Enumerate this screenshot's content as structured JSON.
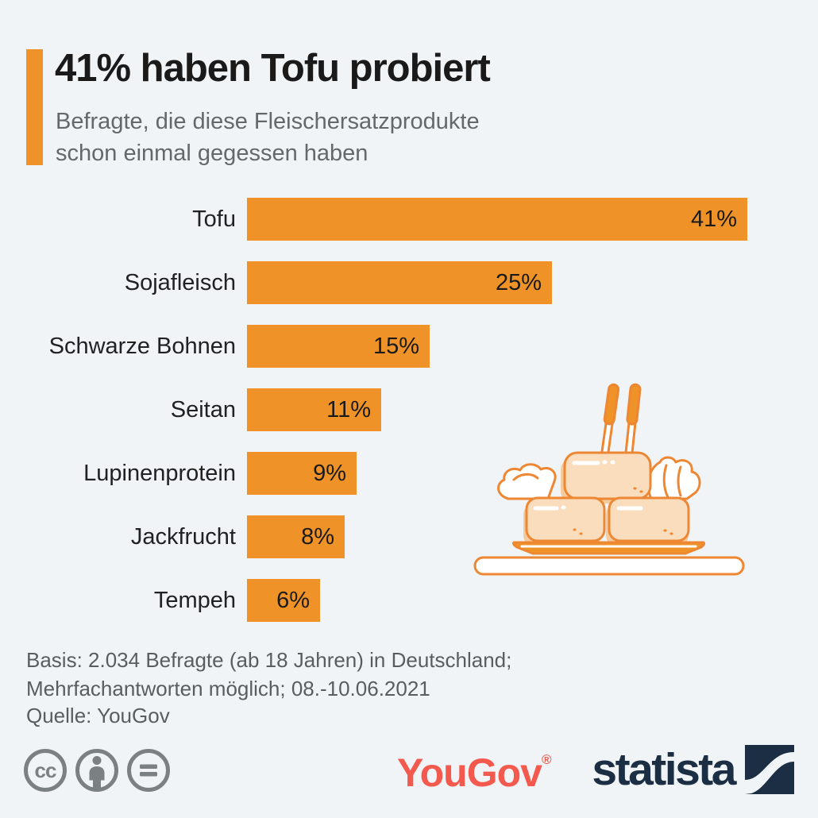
{
  "page": {
    "background_color": "#F0F4F7"
  },
  "header": {
    "title": "41% haben Tofu probiert",
    "subtitle_line1": "Befragte, die diese Fleischersatzprodukte",
    "subtitle_line2": "schon einmal gegessen haben",
    "accent_color": "#EF9329"
  },
  "chart_data": {
    "type": "bar",
    "orientation": "horizontal",
    "title": "41% haben Tofu probiert",
    "subtitle": "Befragte, die diese Fleischersatzprodukte schon einmal gegessen haben",
    "categories": [
      "Tofu",
      "Sojafleisch",
      "Schwarze Bohnen",
      "Seitan",
      "Lupinenprotein",
      "Jackfrucht",
      "Tempeh"
    ],
    "values": [
      41,
      25,
      15,
      11,
      9,
      8,
      6
    ],
    "value_labels": [
      "41%",
      "25%",
      "15%",
      "11%",
      "9%",
      "8%",
      "6%"
    ],
    "value_suffix": "%",
    "xlim": [
      0,
      41
    ],
    "bar_color": "#EF9329",
    "value_label_position": "inside-end",
    "grid": false,
    "legend": false
  },
  "illustration": {
    "name": "tofu-plate-with-chopsticks",
    "outline_color": "#ED8733",
    "block_fill_color": "#F9DDBD",
    "shadow_color": "#F3CB9D",
    "accent_fill_color": "#EF9329"
  },
  "footer": {
    "basis_line1": "Basis: 2.034 Befragte (ab 18 Jahren) in Deutschland;",
    "basis_line2": "Mehrfachantworten möglich; 08.-10.06.2021",
    "source": "Quelle: YouGov"
  },
  "license": {
    "icon_color": "#7B8083",
    "cc_text": "cc",
    "icons": [
      "cc-circle-icon",
      "attribution-person-icon",
      "equals-icon"
    ]
  },
  "branding": {
    "yougov": {
      "label": "YouGov",
      "registered_mark": "®",
      "color": "#F4594E"
    },
    "statista": {
      "label": "statista",
      "color": "#1B2E44",
      "icon_swoosh_color": "#F0F4F7"
    }
  }
}
